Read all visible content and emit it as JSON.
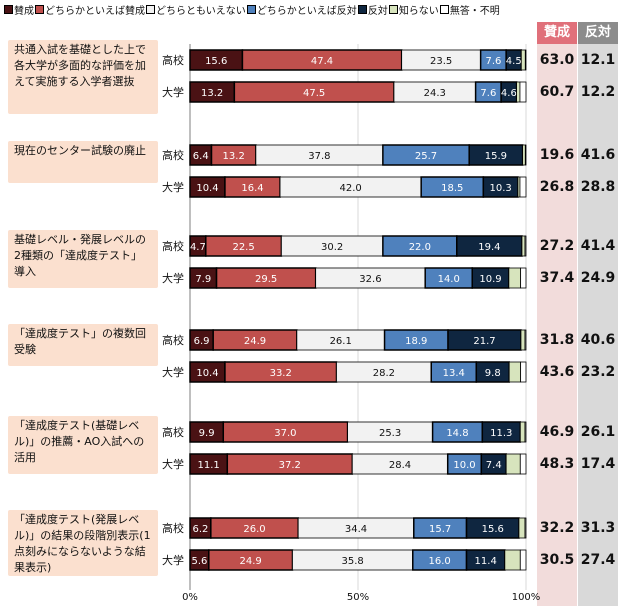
{
  "chart_data": {
    "type": "bar",
    "orientation": "horizontal",
    "stacked": true,
    "legend": [
      {
        "label": "賛成",
        "color": "#4a1214"
      },
      {
        "label": "どちらかといえば賛成",
        "color": "#c0504d"
      },
      {
        "label": "どちらともいえない",
        "color": "#f2f2f2"
      },
      {
        "label": "どちらかといえば反対",
        "color": "#4f81bd"
      },
      {
        "label": "反対",
        "color": "#0f2640"
      },
      {
        "label": "知らない",
        "color": "#d7e4bd"
      },
      {
        "label": "無答・不明",
        "color": "#ffffff"
      }
    ],
    "x_ticks": [
      "0%",
      "50%",
      "100%"
    ],
    "xlim": [
      0,
      100
    ],
    "summary_headers": {
      "agree": "賛成",
      "disagree": "反対"
    },
    "summary_colors": {
      "agree_bg": "#f2dcdb",
      "agree_head": "#e0707a",
      "disagree_bg": "#d9d9d9",
      "disagree_head": "#8c8c8c"
    },
    "groups": [
      {
        "question": "共通入試を基礎とした上で各大学が多面的な評価を加えて実施する入学者選抜",
        "rows": [
          {
            "label": "高校",
            "values": [
              15.6,
              47.4,
              23.5,
              7.6,
              4.5,
              1.2,
              0.2
            ],
            "labels": [
              "15.6",
              "47.4",
              "23.5",
              "7.6",
              "4.5",
              "",
              ""
            ],
            "agree": "63.0",
            "disagree": "12.1"
          },
          {
            "label": "大学",
            "values": [
              13.2,
              47.5,
              24.3,
              7.6,
              4.6,
              1.0,
              1.8
            ],
            "labels": [
              "13.2",
              "47.5",
              "24.3",
              "7.6",
              "4.6",
              "",
              ""
            ],
            "agree": "60.7",
            "disagree": "12.2"
          }
        ]
      },
      {
        "question": "現在のセンター試験の廃止",
        "rows": [
          {
            "label": "高校",
            "values": [
              6.4,
              13.2,
              37.8,
              25.7,
              15.9,
              0.8,
              0.2
            ],
            "labels": [
              "6.4",
              "13.2",
              "37.8",
              "25.7",
              "15.9",
              "",
              ""
            ],
            "agree": "19.6",
            "disagree": "41.6"
          },
          {
            "label": "大学",
            "values": [
              10.4,
              16.4,
              42.0,
              18.5,
              10.3,
              0.6,
              1.8
            ],
            "labels": [
              "10.4",
              "16.4",
              "42.0",
              "18.5",
              "10.3",
              "",
              ""
            ],
            "agree": "26.8",
            "disagree": "28.8"
          }
        ]
      },
      {
        "question": "基礎レベル・発展レベルの2種類の「達成度テスト」導入",
        "rows": [
          {
            "label": "高校",
            "values": [
              4.7,
              22.5,
              30.2,
              22.0,
              19.4,
              0.9,
              0.3
            ],
            "labels": [
              "4.7",
              "22.5",
              "30.2",
              "22.0",
              "19.4",
              "",
              ""
            ],
            "agree": "27.2",
            "disagree": "41.4"
          },
          {
            "label": "大学",
            "values": [
              7.9,
              29.5,
              32.6,
              14.0,
              10.9,
              3.5,
              1.6
            ],
            "labels": [
              "7.9",
              "29.5",
              "32.6",
              "14.0",
              "10.9",
              "",
              ""
            ],
            "agree": "37.4",
            "disagree": "24.9"
          }
        ]
      },
      {
        "question": "「達成度テスト」の複数回受験",
        "rows": [
          {
            "label": "高校",
            "values": [
              6.9,
              24.9,
              26.1,
              18.9,
              21.7,
              1.2,
              0.3
            ],
            "labels": [
              "6.9",
              "24.9",
              "26.1",
              "18.9",
              "21.7",
              "",
              ""
            ],
            "agree": "31.8",
            "disagree": "40.6"
          },
          {
            "label": "大学",
            "values": [
              10.4,
              33.2,
              28.2,
              13.4,
              9.8,
              3.4,
              1.6
            ],
            "labels": [
              "10.4",
              "33.2",
              "28.2",
              "13.4",
              "9.8",
              "",
              ""
            ],
            "agree": "43.6",
            "disagree": "23.2"
          }
        ]
      },
      {
        "question": "「達成度テスト(基礎レベル)」の推薦・AO入試への活用",
        "rows": [
          {
            "label": "高校",
            "values": [
              9.9,
              37.0,
              25.3,
              14.8,
              11.3,
              1.4,
              0.3
            ],
            "labels": [
              "9.9",
              "37.0",
              "25.3",
              "14.8",
              "11.3",
              "",
              ""
            ],
            "agree": "46.9",
            "disagree": "26.1"
          },
          {
            "label": "大学",
            "values": [
              11.1,
              37.2,
              28.4,
              10.0,
              7.4,
              4.2,
              1.7
            ],
            "labels": [
              "11.1",
              "37.2",
              "28.4",
              "10.0",
              "7.4",
              "",
              ""
            ],
            "agree": "48.3",
            "disagree": "17.4"
          }
        ]
      },
      {
        "question": "「達成度テスト(発展レベル)」の結果の段階別表示(1点刻みにならないような結果表示)",
        "rows": [
          {
            "label": "高校",
            "values": [
              6.2,
              26.0,
              34.4,
              15.7,
              15.6,
              1.8,
              0.3
            ],
            "labels": [
              "6.2",
              "26.0",
              "34.4",
              "15.7",
              "15.6",
              "",
              ""
            ],
            "agree": "32.2",
            "disagree": "31.3"
          },
          {
            "label": "大学",
            "values": [
              5.6,
              24.9,
              35.8,
              16.0,
              11.4,
              4.6,
              1.7
            ],
            "labels": [
              "5.6",
              "24.9",
              "35.8",
              "16.0",
              "11.4",
              "",
              ""
            ],
            "agree": "30.5",
            "disagree": "27.4"
          }
        ]
      }
    ]
  }
}
